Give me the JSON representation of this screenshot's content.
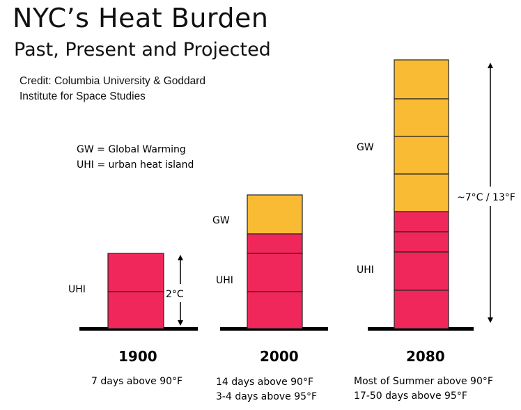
{
  "header": {
    "title": "NYC’s Heat Burden",
    "subtitle": "Past, Present and Projected"
  },
  "credit": {
    "line1": "Credit: Columbia University & Goddard",
    "line2": "Institute for Space Studies"
  },
  "legend": {
    "gw": "GW = Global Warming",
    "uhi": "UHI = urban heat island"
  },
  "colors": {
    "uhi": "#f0275a",
    "gw": "#f9bb33",
    "outline": "#222222"
  },
  "columns": [
    {
      "year": "1900",
      "captions": [
        "7 days above 90°F"
      ],
      "uhi_label": "UHI",
      "gw_label": "",
      "annotation": "2°C",
      "uhi_blocks": 2,
      "gw_blocks": 0
    },
    {
      "year": "2000",
      "captions": [
        "14 days above 90°F",
        "3-4 days above 95°F"
      ],
      "uhi_label": "UHI",
      "gw_label": "GW",
      "annotation": "",
      "uhi_blocks": 3,
      "gw_blocks": 1
    },
    {
      "year": "2080",
      "captions": [
        "Most of Summer above 90°F",
        "17-50 days above 95°F"
      ],
      "uhi_label": "UHI",
      "gw_label": "GW",
      "annotation": "~7°C / 13°F",
      "uhi_blocks": 4,
      "gw_blocks": 4
    }
  ]
}
